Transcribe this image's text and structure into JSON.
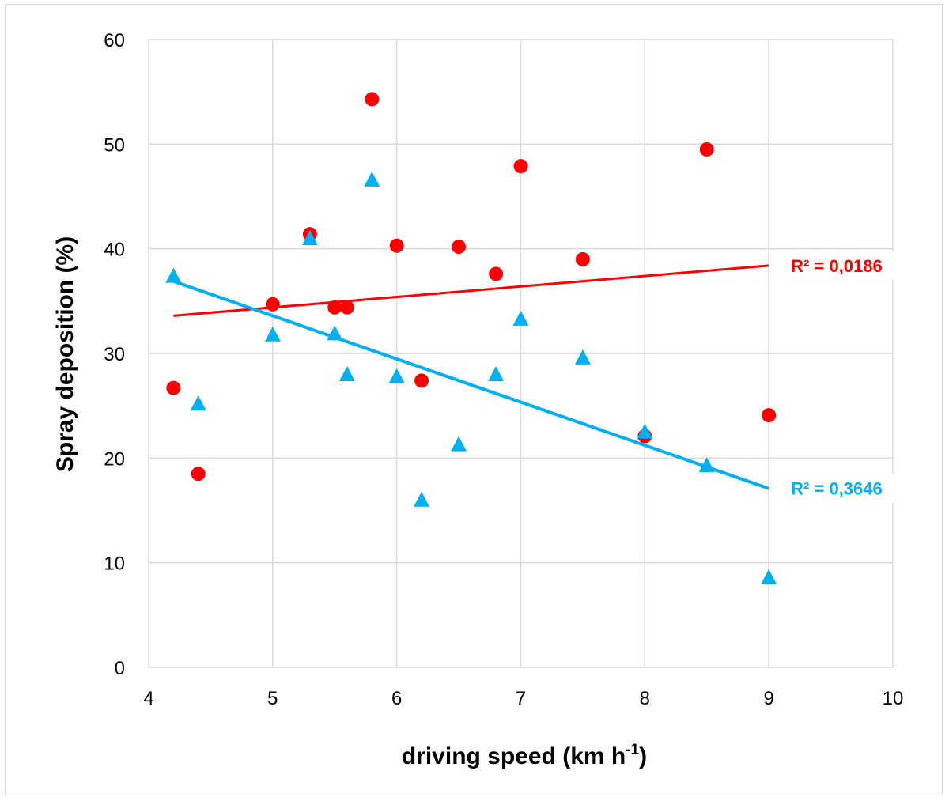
{
  "chart_data": {
    "type": "scatter",
    "title": "",
    "xlabel": "driving speed (km h",
    "xlabel_superscript": "-1",
    "xlabel_suffix": ")",
    "ylabel": "Spray deposition (%)",
    "xlim": [
      4,
      10
    ],
    "ylim": [
      0,
      60
    ],
    "xticks": [
      4,
      5,
      6,
      7,
      8,
      9,
      10
    ],
    "yticks": [
      0,
      10,
      20,
      30,
      40,
      50,
      60
    ],
    "grid": true,
    "series": [
      {
        "name": "circles",
        "marker": "circle",
        "color": "#ff0000",
        "points": [
          {
            "x": 4.2,
            "y": 26.7
          },
          {
            "x": 4.4,
            "y": 18.5
          },
          {
            "x": 5.0,
            "y": 34.7
          },
          {
            "x": 5.3,
            "y": 41.4
          },
          {
            "x": 5.5,
            "y": 34.4
          },
          {
            "x": 5.6,
            "y": 34.4
          },
          {
            "x": 5.8,
            "y": 54.3
          },
          {
            "x": 6.0,
            "y": 40.3
          },
          {
            "x": 6.2,
            "y": 27.4
          },
          {
            "x": 6.5,
            "y": 40.2
          },
          {
            "x": 6.8,
            "y": 37.6
          },
          {
            "x": 7.0,
            "y": 47.9
          },
          {
            "x": 7.5,
            "y": 39.0
          },
          {
            "x": 8.0,
            "y": 22.1
          },
          {
            "x": 8.5,
            "y": 49.5
          },
          {
            "x": 9.0,
            "y": 24.1
          }
        ],
        "trendline": {
          "x_start": 4.2,
          "y_start": 33.6,
          "x_end": 9.0,
          "y_end": 38.4
        },
        "r2_label": "R² = 0,0186"
      },
      {
        "name": "triangles",
        "marker": "triangle",
        "color": "#00b0f0",
        "points": [
          {
            "x": 4.2,
            "y": 37.3
          },
          {
            "x": 4.4,
            "y": 25.1
          },
          {
            "x": 5.0,
            "y": 31.7
          },
          {
            "x": 5.3,
            "y": 40.9
          },
          {
            "x": 5.5,
            "y": 31.8
          },
          {
            "x": 5.6,
            "y": 27.9
          },
          {
            "x": 5.8,
            "y": 46.5
          },
          {
            "x": 6.0,
            "y": 27.7
          },
          {
            "x": 6.2,
            "y": 15.9
          },
          {
            "x": 6.5,
            "y": 21.2
          },
          {
            "x": 6.8,
            "y": 27.9
          },
          {
            "x": 7.0,
            "y": 33.2
          },
          {
            "x": 7.5,
            "y": 29.5
          },
          {
            "x": 8.0,
            "y": 22.4
          },
          {
            "x": 8.5,
            "y": 19.2
          },
          {
            "x": 9.0,
            "y": 8.5
          }
        ],
        "trendline": {
          "x_start": 4.2,
          "y_start": 36.9,
          "x_end": 9.0,
          "y_end": 17.1
        },
        "r2_label": "R² = 0,3646"
      }
    ]
  }
}
